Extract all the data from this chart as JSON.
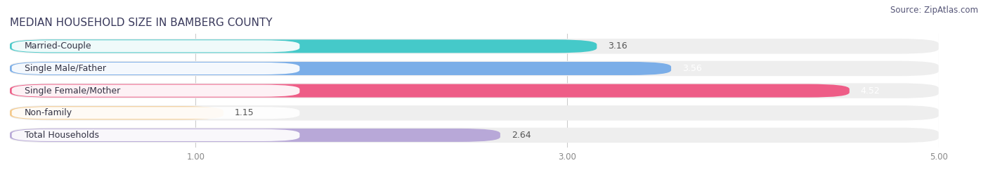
{
  "title": "MEDIAN HOUSEHOLD SIZE IN BAMBERG COUNTY",
  "source": "Source: ZipAtlas.com",
  "categories": [
    "Married-Couple",
    "Single Male/Father",
    "Single Female/Mother",
    "Non-family",
    "Total Households"
  ],
  "values": [
    3.16,
    3.56,
    4.52,
    1.15,
    2.64
  ],
  "bar_colors": [
    "#45C9C9",
    "#7BAEE8",
    "#EE5D87",
    "#F5C98A",
    "#B8A8D8"
  ],
  "bar_edge_colors": [
    "#35B0B0",
    "#5590D0",
    "#CC3060",
    "#DDA060",
    "#9080BB"
  ],
  "value_labels": [
    "3.16",
    "3.56",
    "4.52",
    "1.15",
    "2.64"
  ],
  "value_label_colors": [
    "#555555",
    "#ffffff",
    "#ffffff",
    "#555555",
    "#555555"
  ],
  "xlim": [
    0,
    5.0
  ],
  "xticks": [
    1.0,
    3.0,
    5.0
  ],
  "xticklabels": [
    "1.00",
    "3.00",
    "5.00"
  ],
  "background_color": "#ffffff",
  "row_background_color": "#eeeeee",
  "label_pill_color": "#ffffff",
  "title_fontsize": 11,
  "source_fontsize": 8.5,
  "label_fontsize": 9,
  "value_fontsize": 9,
  "title_color": "#3a3a5c",
  "source_color": "#555577",
  "label_color": "#333344",
  "tick_color": "#888888"
}
